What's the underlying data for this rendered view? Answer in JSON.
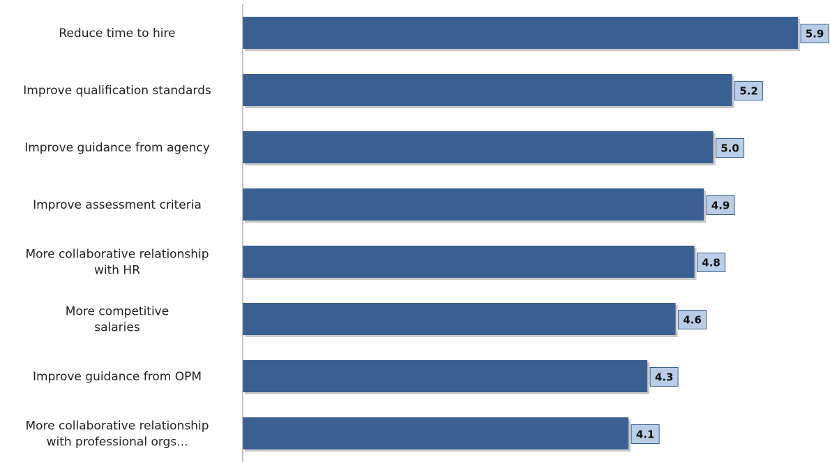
{
  "colors": {
    "bar": "#3a5f92",
    "bar_shadow": "#c8c8c8",
    "label_box_fill": "#b9cde6",
    "label_box_stroke": "#3a5f92",
    "axis": "#888888"
  },
  "chart_data": {
    "type": "bar",
    "orientation": "horizontal",
    "categories": [
      [
        "Reduce  time to hire"
      ],
      [
        "Improve qualification standards"
      ],
      [
        "Improve guidance from agency"
      ],
      [
        "Improve assessment criteria"
      ],
      [
        "More collaborative relationship",
        "with HR"
      ],
      [
        "More competitive",
        "salaries"
      ],
      [
        "Improve guidance from OPM"
      ],
      [
        "More collaborative relationship",
        "with professional orgs..."
      ]
    ],
    "values": [
      5.9,
      5.2,
      5.0,
      4.9,
      4.8,
      4.6,
      4.3,
      4.1
    ],
    "value_labels": [
      "5.9",
      "5.2",
      "5.0",
      "4.9",
      "4.8",
      "4.6",
      "4.3",
      "4.1"
    ],
    "xlim": [
      0,
      5.9
    ],
    "grid": false,
    "legend": "none"
  }
}
